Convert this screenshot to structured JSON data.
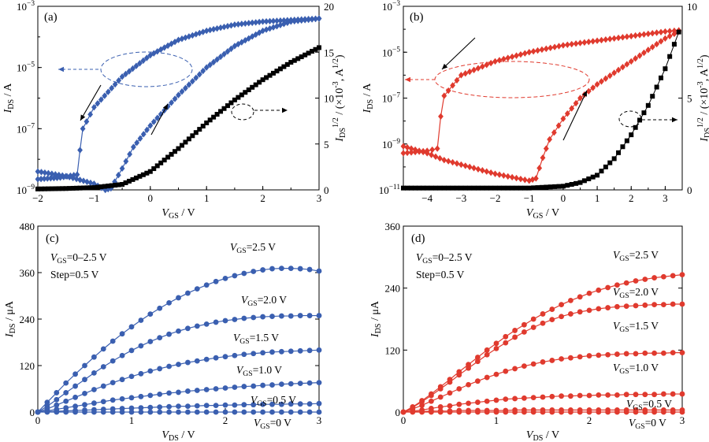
{
  "chart_data": [
    {
      "panel": "(a)",
      "type": "line",
      "xlabel": "V_GS / V",
      "ylabel_left": "I_DS / A",
      "ylabel_right": "I_DS^1/2 / (×10^-3, A^1/2)",
      "xlim": [
        -2,
        3
      ],
      "ylim_left_log": [
        1e-09,
        0.001
      ],
      "ylim_right": [
        0,
        20
      ],
      "x_ticks": [
        "−2",
        "−1",
        "0",
        "1",
        "2",
        "3"
      ],
      "y_left_ticks": [
        {
          "base": "10",
          "exp": "−9",
          "v": -9
        },
        {
          "base": "10",
          "exp": "−7",
          "v": -7
        },
        {
          "base": "10",
          "exp": "−5",
          "v": -5
        },
        {
          "base": "10",
          "exp": "−3",
          "v": -3
        }
      ],
      "y_right_ticks": [
        "0",
        "5",
        "10",
        "15",
        "20"
      ],
      "color": "#3a5fb0",
      "series": [
        {
          "role": "transfer-forward",
          "marker": "diamond",
          "axis": "left-log",
          "x": [
            -2.0,
            -1.5,
            -1.0,
            -0.8,
            -0.7,
            -0.5,
            -0.3,
            0.0,
            0.5,
            1.0,
            1.5,
            2.0,
            2.5,
            3.0
          ],
          "y_log": [
            -8.4,
            -8.55,
            -8.8,
            -9.0,
            -8.95,
            -8.3,
            -7.6,
            -6.9,
            -5.9,
            -5.0,
            -4.3,
            -3.8,
            -3.5,
            -3.4
          ]
        },
        {
          "role": "transfer-reverse",
          "marker": "diamond",
          "axis": "left-log",
          "x": [
            3.0,
            2.5,
            2.0,
            1.5,
            1.0,
            0.5,
            0.0,
            -0.5,
            -1.0,
            -1.2,
            -1.25,
            -1.3,
            -1.6,
            -2.0
          ],
          "y_log": [
            -3.4,
            -3.45,
            -3.5,
            -3.6,
            -3.8,
            -4.1,
            -4.6,
            -5.3,
            -6.3,
            -7.0,
            -7.7,
            -8.5,
            -8.6,
            -8.65
          ]
        },
        {
          "role": "sqrt-current",
          "marker": "square",
          "axis": "right",
          "x": [
            -2.0,
            -1.5,
            -1.0,
            -0.5,
            0.0,
            0.5,
            1.0,
            1.5,
            2.0,
            2.5,
            3.0
          ],
          "y": [
            0.1,
            0.15,
            0.25,
            0.6,
            2.0,
            4.5,
            7.3,
            9.8,
            12.0,
            13.9,
            15.5
          ]
        }
      ]
    },
    {
      "panel": "(b)",
      "type": "line",
      "xlabel": "V_GS / V",
      "ylabel_left": "I_DS / A",
      "ylabel_right": "I_DS^1/2 / (×10^-3, A^1/2)",
      "xlim": [
        -4.7,
        3.5
      ],
      "ylim_left_log": [
        1e-11,
        0.001
      ],
      "ylim_right": [
        0,
        10
      ],
      "x_ticks": [
        "−4",
        "−3",
        "−2",
        "−1",
        "0",
        "1",
        "2",
        "3"
      ],
      "y_left_ticks": [
        {
          "base": "10",
          "exp": "−11",
          "v": -11
        },
        {
          "base": "10",
          "exp": "−9",
          "v": -9
        },
        {
          "base": "10",
          "exp": "−7",
          "v": -7
        },
        {
          "base": "10",
          "exp": "−5",
          "v": -5
        },
        {
          "base": "10",
          "exp": "−3",
          "v": -3
        }
      ],
      "y_right_ticks": [
        "0",
        "5",
        "10"
      ],
      "color": "#e03a2e",
      "series": [
        {
          "role": "transfer-forward",
          "marker": "diamond",
          "axis": "left-log",
          "x": [
            -4.7,
            -4.0,
            -3.5,
            -3.0,
            -2.0,
            -1.0,
            -0.8,
            -0.6,
            -0.4,
            0.0,
            0.5,
            1.0,
            2.0,
            3.0,
            3.4
          ],
          "y_log": [
            -9.1,
            -9.4,
            -9.7,
            -9.9,
            -10.3,
            -10.6,
            -10.5,
            -9.6,
            -8.8,
            -7.9,
            -7.0,
            -6.4,
            -5.4,
            -4.4,
            -4.1
          ]
        },
        {
          "role": "transfer-reverse",
          "marker": "diamond",
          "axis": "left-log",
          "x": [
            3.4,
            3.0,
            2.0,
            1.0,
            0.0,
            -1.0,
            -2.0,
            -3.0,
            -3.5,
            -3.6,
            -3.7,
            -4.0,
            -4.7
          ],
          "y_log": [
            -4.05,
            -4.1,
            -4.3,
            -4.5,
            -4.7,
            -5.0,
            -5.4,
            -6.0,
            -6.9,
            -7.8,
            -9.2,
            -9.3,
            -9.4
          ]
        },
        {
          "role": "sqrt-current",
          "marker": "square",
          "axis": "right",
          "x": [
            -4.7,
            -4.0,
            -3.0,
            -2.0,
            -1.0,
            0.0,
            0.5,
            1.0,
            1.5,
            2.0,
            2.5,
            3.0,
            3.4
          ],
          "y": [
            0.1,
            0.1,
            0.1,
            0.1,
            0.1,
            0.2,
            0.4,
            0.8,
            1.7,
            3.0,
            4.6,
            6.6,
            8.6
          ]
        }
      ]
    },
    {
      "panel": "(c)",
      "type": "line",
      "xlabel": "V_DS / V",
      "ylabel": "I_DS / μA",
      "xlim": [
        0,
        3
      ],
      "ylim": [
        0,
        480
      ],
      "x_ticks": [
        "0",
        "1",
        "2",
        "3"
      ],
      "y_ticks": [
        "0",
        "120",
        "240",
        "360",
        "480"
      ],
      "color": "#3a5fb0",
      "legend_text": [
        "V_GS=0–2.5 V",
        "Step=0.5 V"
      ],
      "x": [
        0,
        0.1,
        0.2,
        0.3,
        0.4,
        0.5,
        0.6,
        0.7,
        0.8,
        0.9,
        1.0,
        1.1,
        1.2,
        1.3,
        1.4,
        1.5,
        1.6,
        1.7,
        1.8,
        1.9,
        2.0,
        2.1,
        2.2,
        2.3,
        2.4,
        2.5,
        2.6,
        2.7,
        2.8,
        2.9,
        3.0
      ],
      "series": [
        {
          "name": "V_GS=2.5 V",
          "y": [
            0,
            25,
            50,
            75,
            98,
            120,
            142,
            163,
            183,
            202,
            220,
            237,
            253,
            268,
            282,
            295,
            307,
            318,
            328,
            337,
            345,
            352,
            358,
            363,
            367,
            370,
            371,
            371,
            370,
            368,
            364
          ]
        },
        {
          "name": "V_GS=2.0 V",
          "y": [
            0,
            15,
            32,
            50,
            67,
            84,
            101,
            117,
            132,
            146,
            159,
            171,
            182,
            192,
            201,
            209,
            216,
            222,
            227,
            232,
            236,
            239,
            242,
            244,
            246,
            247,
            248,
            248,
            249,
            249,
            249
          ]
        },
        {
          "name": "V_GS=1.5 V",
          "y": [
            0,
            8,
            18,
            28,
            38,
            48,
            58,
            67,
            76,
            84,
            92,
            99,
            106,
            112,
            118,
            123,
            128,
            132,
            136,
            140,
            143,
            146,
            149,
            151,
            153,
            155,
            156,
            157,
            158,
            159,
            160
          ]
        },
        {
          "name": "V_GS=1.0 V",
          "y": [
            0,
            3,
            7,
            11,
            15,
            19,
            23,
            27,
            31,
            34,
            37,
            40,
            43,
            46,
            49,
            51,
            54,
            56,
            58,
            60,
            62,
            64,
            66,
            67,
            69,
            70,
            72,
            73,
            74,
            75,
            76
          ]
        },
        {
          "name": "V_GS=0.5 V",
          "y": [
            0,
            1,
            2,
            3,
            4,
            5,
            6,
            7,
            8,
            9,
            10,
            11,
            12,
            13,
            14,
            15,
            15,
            16,
            17,
            17,
            18,
            18,
            19,
            19,
            20,
            20,
            20,
            21,
            21,
            21,
            22
          ]
        },
        {
          "name": "V_GS=0 V",
          "y": [
            0,
            0,
            0,
            0,
            0,
            0,
            0,
            0,
            0,
            0,
            0,
            0,
            0,
            0,
            0,
            0,
            0,
            0,
            0,
            0,
            0,
            0,
            0,
            0,
            0,
            0,
            0,
            0,
            0,
            0,
            0
          ]
        }
      ]
    },
    {
      "panel": "(d)",
      "type": "line",
      "xlabel": "V_DS / V",
      "ylabel": "I_DS / μA",
      "xlim": [
        0,
        3
      ],
      "ylim": [
        0,
        360
      ],
      "x_ticks": [
        "0",
        "1",
        "2",
        "3"
      ],
      "y_ticks": [
        "0",
        "120",
        "240",
        "360"
      ],
      "color": "#e03a2e",
      "legend_text": [
        "V_GS=0–2.5 V",
        "Step=0.5 V"
      ],
      "x": [
        0,
        0.1,
        0.2,
        0.3,
        0.4,
        0.5,
        0.6,
        0.7,
        0.8,
        0.9,
        1.0,
        1.1,
        1.2,
        1.3,
        1.4,
        1.5,
        1.6,
        1.7,
        1.8,
        1.9,
        2.0,
        2.1,
        2.2,
        2.3,
        2.4,
        2.5,
        2.6,
        2.7,
        2.8,
        2.9,
        3.0
      ],
      "series": [
        {
          "name": "V_GS=2.5 V",
          "y": [
            0,
            10,
            22,
            35,
            49,
            63,
            78,
            92,
            106,
            120,
            133,
            146,
            158,
            169,
            180,
            190,
            199,
            208,
            216,
            223,
            230,
            236,
            241,
            246,
            250,
            254,
            257,
            260,
            262,
            264,
            266
          ]
        },
        {
          "name": "V_GS=2.0 V",
          "y": [
            0,
            9,
            20,
            32,
            45,
            58,
            72,
            85,
            98,
            111,
            123,
            134,
            145,
            155,
            164,
            172,
            179,
            185,
            190,
            194,
            197,
            200,
            202,
            204,
            205,
            206,
            207,
            208,
            208,
            209,
            209
          ]
        },
        {
          "name": "V_GS=1.5 V",
          "y": [
            0,
            6,
            13,
            21,
            29,
            37,
            45,
            53,
            60,
            67,
            73,
            79,
            84,
            89,
            93,
            97,
            100,
            103,
            105,
            107,
            109,
            110,
            111,
            112,
            113,
            113,
            114,
            114,
            114,
            115,
            115
          ]
        },
        {
          "name": "V_GS=1.0 V",
          "y": [
            0,
            2,
            4,
            7,
            10,
            12,
            15,
            17,
            19,
            21,
            23,
            25,
            26,
            27,
            28,
            29,
            30,
            31,
            31,
            32,
            32,
            33,
            33,
            33,
            34,
            34,
            34,
            34,
            35,
            35,
            35
          ]
        },
        {
          "name": "V_GS=0.5 V",
          "y": [
            0,
            1,
            1,
            2,
            2,
            2,
            3,
            3,
            3,
            3,
            3,
            3,
            4,
            4,
            4,
            4,
            4,
            4,
            4,
            4,
            4,
            4,
            4,
            4,
            4,
            4,
            4,
            4,
            4,
            4,
            4
          ]
        },
        {
          "name": "V_GS=0 V",
          "y": [
            0,
            0,
            0,
            0,
            0,
            0,
            0,
            0,
            0,
            0,
            0,
            0,
            0,
            0,
            0,
            0,
            0,
            0,
            0,
            0,
            0,
            0,
            0,
            0,
            0,
            0,
            0,
            0,
            0,
            0,
            0
          ]
        }
      ]
    }
  ]
}
